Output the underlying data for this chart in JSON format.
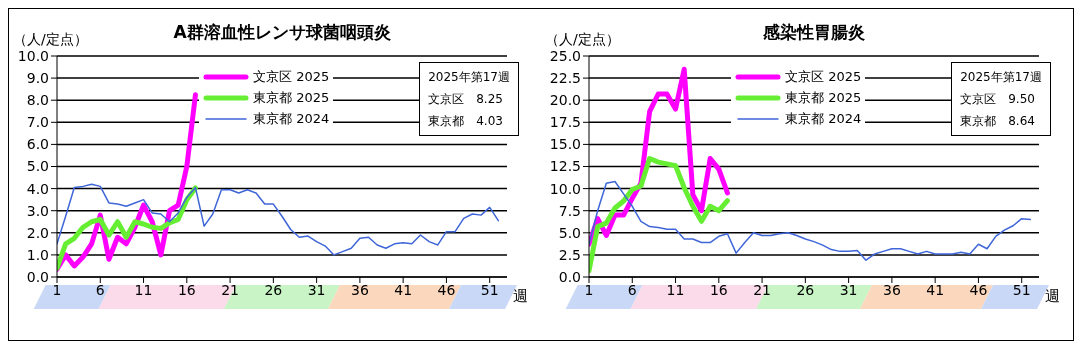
{
  "chart_data": [
    {
      "type": "line",
      "title": "A群溶血性レンサ球菌咽頭炎",
      "ylabel": "（人/定点）",
      "xlabel": "週",
      "annotations": [
        "2025年第17週",
        "文京区　8.25",
        "東京都　4.03"
      ],
      "x": [
        1,
        2,
        3,
        4,
        5,
        6,
        7,
        8,
        9,
        10,
        11,
        12,
        13,
        14,
        15,
        16,
        17,
        18,
        19,
        20,
        21,
        22,
        23,
        24,
        25,
        26,
        27,
        28,
        29,
        30,
        31,
        32,
        33,
        34,
        35,
        36,
        37,
        38,
        39,
        40,
        41,
        42,
        43,
        44,
        45,
        46,
        47,
        48,
        49,
        50,
        51,
        52
      ],
      "xlim": [
        1,
        53
      ],
      "xticks": [
        1,
        6,
        11,
        16,
        21,
        26,
        31,
        36,
        41,
        46,
        51
      ],
      "ylim": [
        0,
        10
      ],
      "yticks": [
        {
          "value": 0,
          "label": "0.0"
        },
        {
          "value": 1,
          "label": "1.0"
        },
        {
          "value": 2,
          "label": "2.0"
        },
        {
          "value": 3,
          "label": "3.0"
        },
        {
          "value": 4,
          "label": "4.0"
        },
        {
          "value": 5,
          "label": "5.0"
        },
        {
          "value": 6,
          "label": "6.0"
        },
        {
          "value": 7,
          "label": "7.0"
        },
        {
          "value": 8,
          "label": "8.0"
        },
        {
          "value": 9,
          "label": "9.0"
        },
        {
          "value": 10,
          "label": "10.0"
        }
      ],
      "grid": "y",
      "legend": "top",
      "series": [
        {
          "name": "文京区 2025",
          "color": "#ff00ff",
          "values": [
            0.35,
            1.0,
            0.5,
            0.9,
            1.5,
            2.8,
            0.8,
            1.8,
            1.5,
            2.25,
            3.25,
            2.5,
            1.0,
            3.0,
            3.25,
            5.0,
            8.25,
            null,
            null,
            null,
            null,
            null,
            null,
            null,
            null,
            null,
            null,
            null,
            null,
            null,
            null,
            null,
            null,
            null,
            null,
            null,
            null,
            null,
            null,
            null,
            null,
            null,
            null,
            null,
            null,
            null,
            null,
            null,
            null,
            null,
            null,
            null
          ]
        },
        {
          "name": "東京都 2025",
          "color": "#66ee33",
          "values": [
            0.4,
            1.5,
            1.75,
            2.25,
            2.5,
            2.6,
            1.9,
            2.5,
            1.8,
            2.5,
            2.4,
            2.25,
            2.2,
            2.45,
            2.6,
            3.5,
            4.03,
            null,
            null,
            null,
            null,
            null,
            null,
            null,
            null,
            null,
            null,
            null,
            null,
            null,
            null,
            null,
            null,
            null,
            null,
            null,
            null,
            null,
            null,
            null,
            null,
            null,
            null,
            null,
            null,
            null,
            null,
            null,
            null,
            null,
            null,
            null
          ]
        },
        {
          "name": "東京都 2024",
          "color": "#3f66d8",
          "values": [
            1.5,
            2.75,
            4.05,
            4.1,
            4.2,
            4.1,
            3.35,
            3.3,
            3.2,
            3.35,
            3.5,
            2.9,
            2.85,
            2.5,
            2.9,
            3.6,
            4.05,
            2.3,
            2.85,
            3.95,
            3.95,
            3.8,
            3.95,
            3.8,
            3.3,
            3.3,
            2.75,
            2.15,
            1.8,
            1.85,
            1.6,
            1.4,
            1.0,
            1.15,
            1.3,
            1.75,
            1.8,
            1.45,
            1.3,
            1.5,
            1.55,
            1.5,
            1.9,
            1.6,
            1.45,
            2.05,
            2.05,
            2.65,
            2.85,
            2.8,
            3.15,
            2.55
          ]
        }
      ]
    },
    {
      "type": "line",
      "title": "感染性胃腸炎",
      "ylabel": "（人/定点）",
      "xlabel": "週",
      "annotations": [
        "2025年第17週",
        "文京区　9.50",
        "東京都　8.64"
      ],
      "x": [
        1,
        2,
        3,
        4,
        5,
        6,
        7,
        8,
        9,
        10,
        11,
        12,
        13,
        14,
        15,
        16,
        17,
        18,
        19,
        20,
        21,
        22,
        23,
        24,
        25,
        26,
        27,
        28,
        29,
        30,
        31,
        32,
        33,
        34,
        35,
        36,
        37,
        38,
        39,
        40,
        41,
        42,
        43,
        44,
        45,
        46,
        47,
        48,
        49,
        50,
        51,
        52
      ],
      "xlim": [
        1,
        53
      ],
      "xticks": [
        1,
        6,
        11,
        16,
        21,
        26,
        31,
        36,
        41,
        46,
        51
      ],
      "ylim": [
        0,
        25
      ],
      "yticks": [
        {
          "value": 0,
          "label": "0.0"
        },
        {
          "value": 2.5,
          "label": "2.5"
        },
        {
          "value": 5,
          "label": "5.0"
        },
        {
          "value": 7.5,
          "label": "7.5"
        },
        {
          "value": 10,
          "label": "10.0"
        },
        {
          "value": 12.5,
          "label": "12.5"
        },
        {
          "value": 15,
          "label": "15.0"
        },
        {
          "value": 17.5,
          "label": "17.5"
        },
        {
          "value": 20,
          "label": "20.0"
        },
        {
          "value": 22.5,
          "label": "22.5"
        },
        {
          "value": 25,
          "label": "25.0"
        }
      ],
      "grid": "y",
      "legend": "top",
      "series": [
        {
          "name": "文京区 2025",
          "color": "#ff00ff",
          "values": [
            3.7,
            6.6,
            4.7,
            7.0,
            7.0,
            8.9,
            10.6,
            18.7,
            20.7,
            20.7,
            19.0,
            23.5,
            9.3,
            7.5,
            13.4,
            12.2,
            9.5,
            null,
            null,
            null,
            null,
            null,
            null,
            null,
            null,
            null,
            null,
            null,
            null,
            null,
            null,
            null,
            null,
            null,
            null,
            null,
            null,
            null,
            null,
            null,
            null,
            null,
            null,
            null,
            null,
            null,
            null,
            null,
            null,
            null,
            null,
            null
          ]
        },
        {
          "name": "東京都 2025",
          "color": "#66ee33",
          "values": [
            0.7,
            5.7,
            6.1,
            7.8,
            8.6,
            9.9,
            10.3,
            13.4,
            13.0,
            12.8,
            12.6,
            10.1,
            8.0,
            6.3,
            8.0,
            7.5,
            8.64,
            null,
            null,
            null,
            null,
            null,
            null,
            null,
            null,
            null,
            null,
            null,
            null,
            null,
            null,
            null,
            null,
            null,
            null,
            null,
            null,
            null,
            null,
            null,
            null,
            null,
            null,
            null,
            null,
            null,
            null,
            null,
            null,
            null,
            null,
            null
          ]
        },
        {
          "name": "東京都 2024",
          "color": "#3f66d8",
          "values": [
            3.7,
            7.5,
            10.6,
            10.8,
            9.4,
            8.0,
            6.3,
            5.7,
            5.6,
            5.4,
            5.4,
            4.3,
            4.3,
            3.9,
            3.9,
            4.6,
            4.9,
            2.7,
            3.9,
            5.0,
            4.7,
            4.7,
            4.9,
            5.0,
            4.7,
            4.3,
            4.0,
            3.6,
            3.1,
            2.9,
            2.9,
            3.0,
            1.9,
            2.6,
            2.9,
            3.2,
            3.2,
            2.9,
            2.6,
            2.9,
            2.6,
            2.6,
            2.6,
            2.8,
            2.6,
            3.7,
            3.2,
            4.6,
            5.3,
            5.8,
            6.6,
            6.5
          ]
        }
      ]
    }
  ]
}
